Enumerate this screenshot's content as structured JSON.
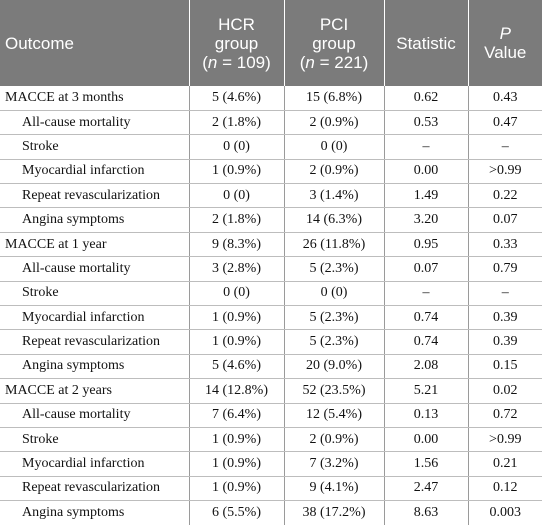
{
  "table": {
    "headers": [
      {
        "lines": [
          "Outcome"
        ]
      },
      {
        "lines": [
          "HCR",
          "group",
          "(n = 109)"
        ]
      },
      {
        "lines": [
          "PCI",
          "group",
          "(n = 221)"
        ]
      },
      {
        "lines": [
          "Statistic"
        ]
      },
      {
        "lines": [
          "P",
          "Value"
        ]
      }
    ],
    "rows": [
      {
        "label": "MACCE at 3 months",
        "hcr": "5 (4.6%)",
        "pci": "15 (6.8%)",
        "statistic": "0.62",
        "p": "0.43"
      },
      {
        "label": "All-cause mortality",
        "hcr": "2 (1.8%)",
        "pci": "2 (0.9%)",
        "statistic": "0.53",
        "p": "0.47"
      },
      {
        "label": "Stroke",
        "hcr": "0 (0)",
        "pci": "0 (0)",
        "statistic": "–",
        "p": "–"
      },
      {
        "label": "Myocardial infarction",
        "hcr": "1 (0.9%)",
        "pci": "2 (0.9%)",
        "statistic": "0.00",
        "p": ">0.99"
      },
      {
        "label": "Repeat revascularization",
        "hcr": "0 (0)",
        "pci": "3 (1.4%)",
        "statistic": "1.49",
        "p": "0.22"
      },
      {
        "label": "Angina symptoms",
        "hcr": "2 (1.8%)",
        "pci": "14 (6.3%)",
        "statistic": "3.20",
        "p": "0.07"
      },
      {
        "label": "MACCE at 1 year",
        "hcr": "9 (8.3%)",
        "pci": "26 (11.8%)",
        "statistic": "0.95",
        "p": "0.33"
      },
      {
        "label": "All-cause mortality",
        "hcr": "3 (2.8%)",
        "pci": "5 (2.3%)",
        "statistic": "0.07",
        "p": "0.79"
      },
      {
        "label": "Stroke",
        "hcr": "0 (0)",
        "pci": "0 (0)",
        "statistic": "–",
        "p": "–"
      },
      {
        "label": "Myocardial infarction",
        "hcr": "1 (0.9%)",
        "pci": "5 (2.3%)",
        "statistic": "0.74",
        "p": "0.39"
      },
      {
        "label": "Repeat revascularization",
        "hcr": "1 (0.9%)",
        "pci": "5 (2.3%)",
        "statistic": "0.74",
        "p": "0.39"
      },
      {
        "label": "Angina symptoms",
        "hcr": "5 (4.6%)",
        "pci": "20 (9.0%)",
        "statistic": "2.08",
        "p": "0.15"
      },
      {
        "label": "MACCE at 2 years",
        "hcr": "14 (12.8%)",
        "pci": "52 (23.5%)",
        "statistic": "5.21",
        "p": "0.02"
      },
      {
        "label": "All-cause mortality",
        "hcr": "7 (6.4%)",
        "pci": "12 (5.4%)",
        "statistic": "0.13",
        "p": "0.72"
      },
      {
        "label": "Stroke",
        "hcr": "1 (0.9%)",
        "pci": "2 (0.9%)",
        "statistic": "0.00",
        "p": ">0.99"
      },
      {
        "label": "Myocardial infarction",
        "hcr": "1 (0.9%)",
        "pci": "7 (3.2%)",
        "statistic": "1.56",
        "p": "0.21"
      },
      {
        "label": "Repeat revascularization",
        "hcr": "1 (0.9%)",
        "pci": "9 (4.1%)",
        "statistic": "2.47",
        "p": "0.12"
      },
      {
        "label": "Angina symptoms",
        "hcr": "6 (5.5%)",
        "pci": "38 (17.2%)",
        "statistic": "8.63",
        "p": "0.003"
      }
    ]
  }
}
